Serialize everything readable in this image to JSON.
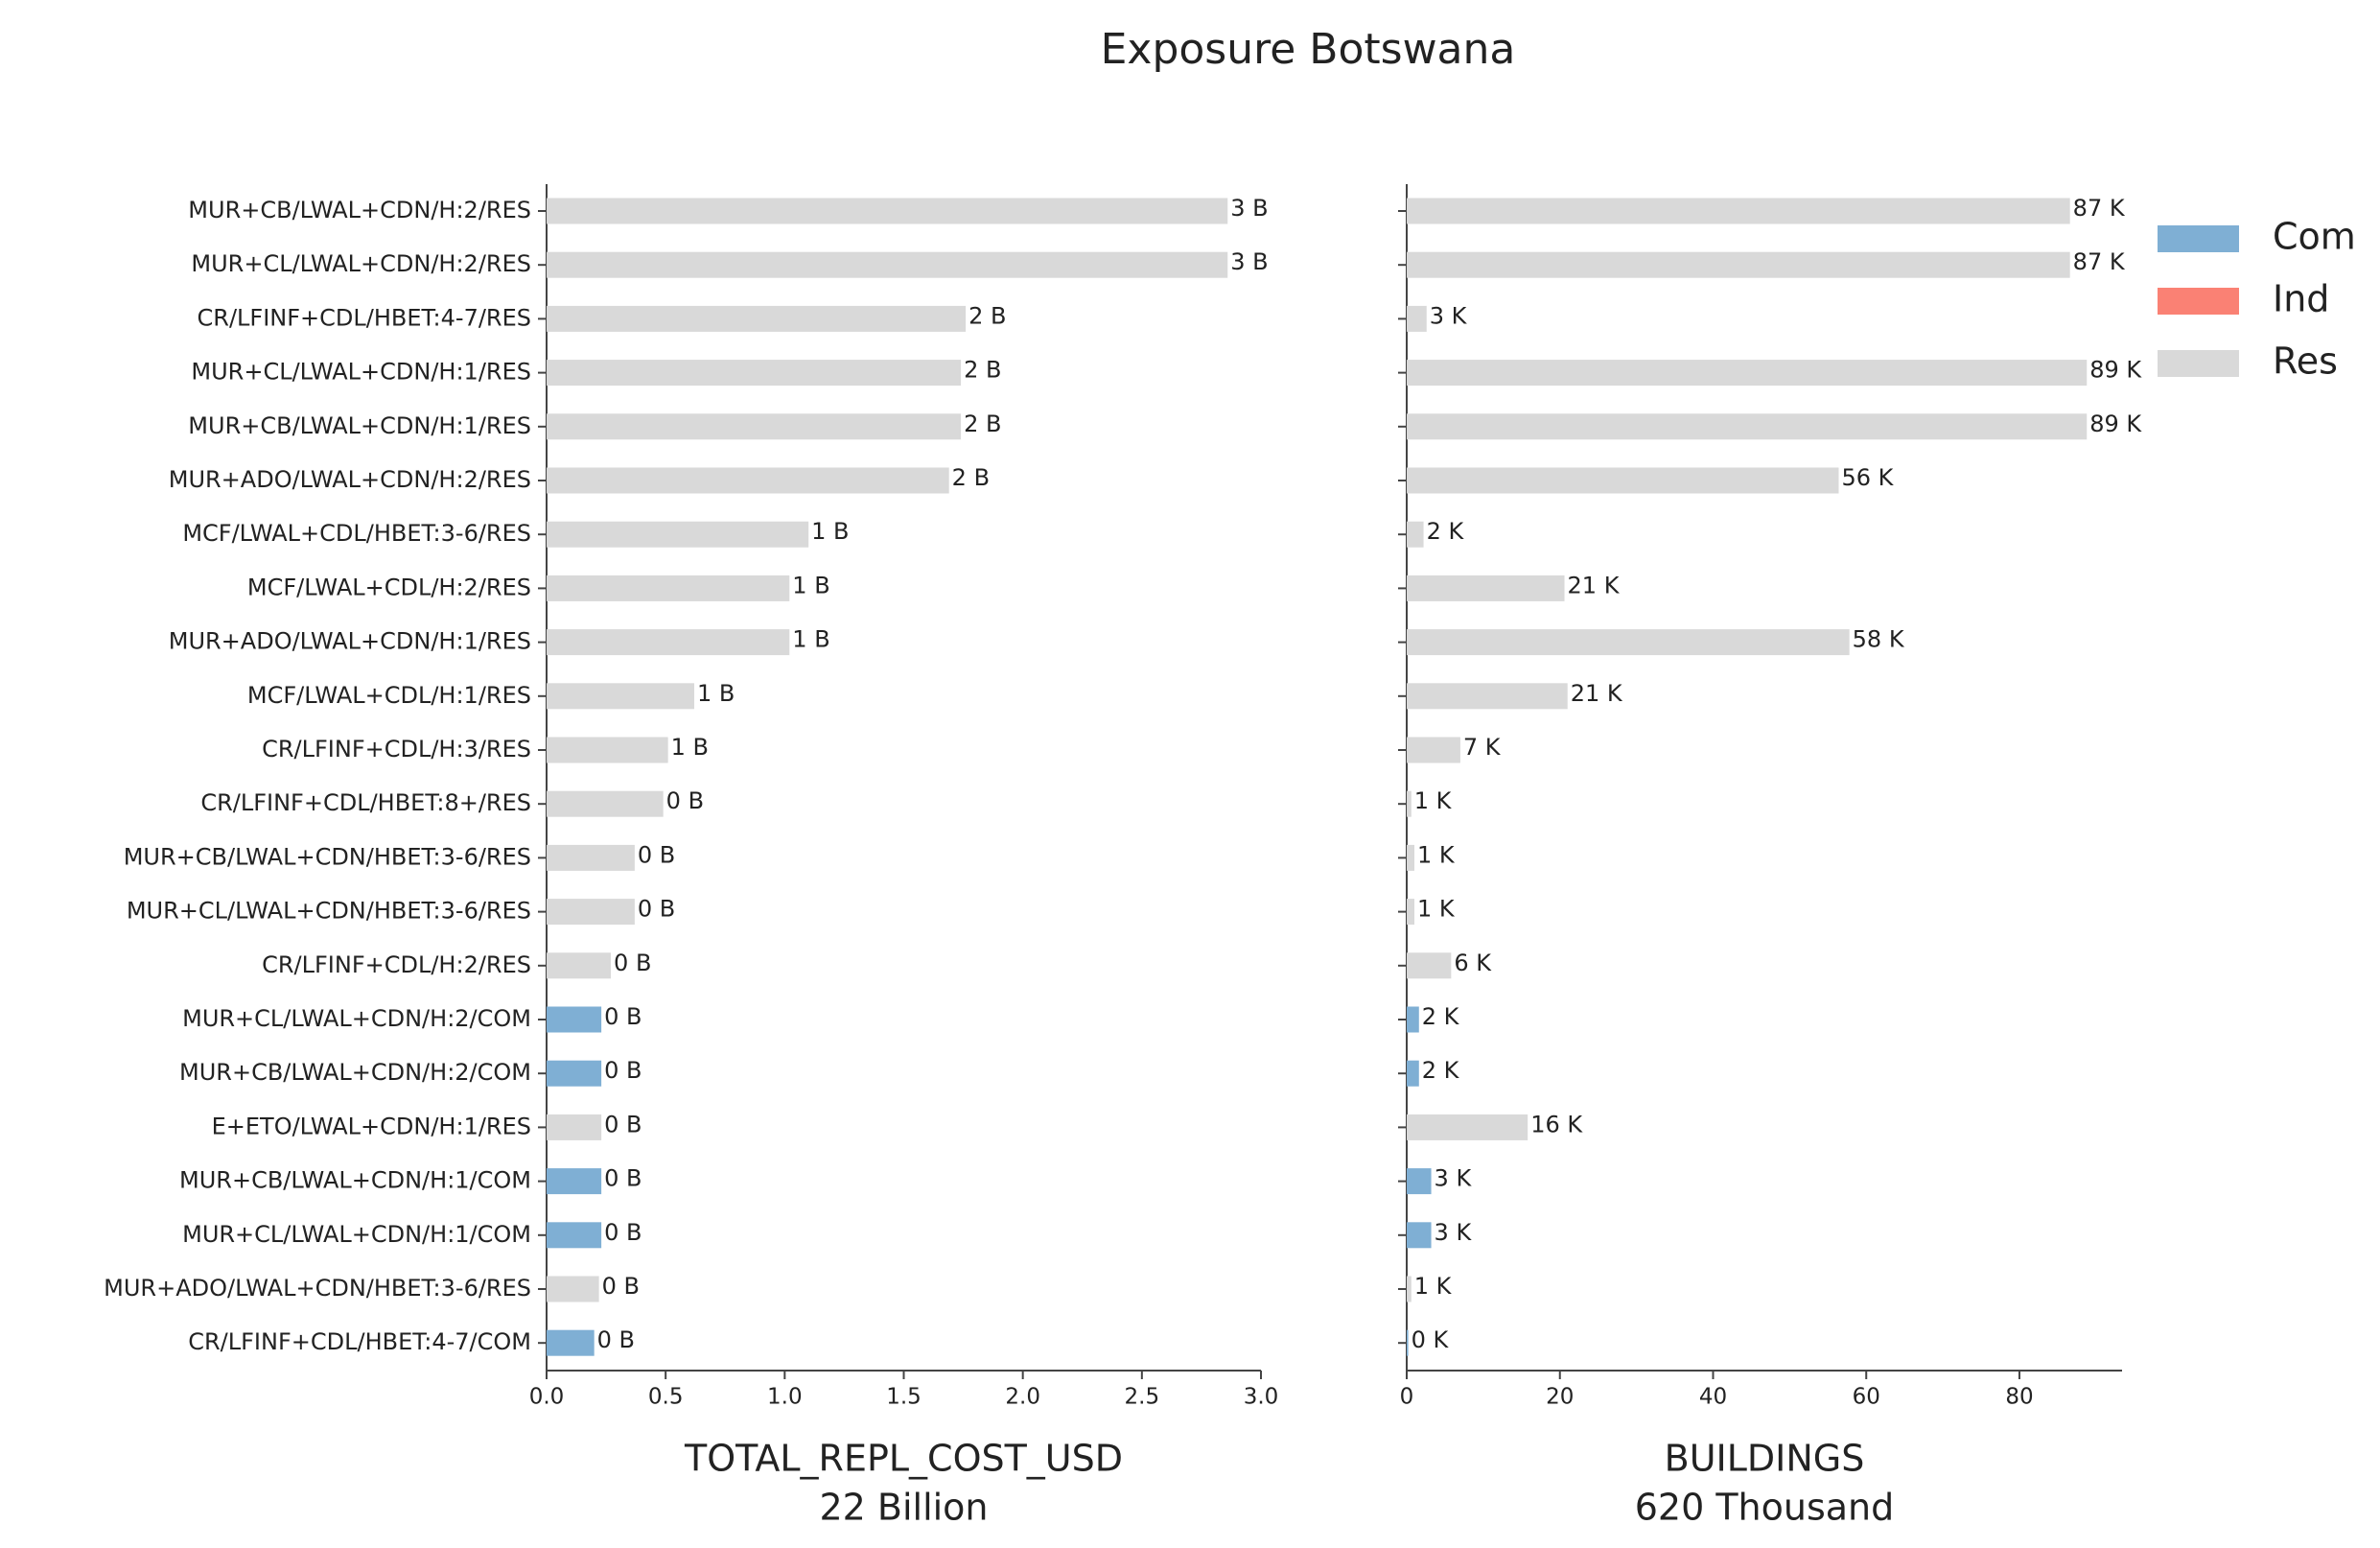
{
  "chart_data": [
    {
      "type": "bar",
      "orientation": "horizontal",
      "title": "Exposure Botswana",
      "categories": [
        "MUR+CB/LWAL+CDN/H:2/RES",
        "MUR+CL/LWAL+CDN/H:2/RES",
        "CR/LFINF+CDL/HBET:4-7/RES",
        "MUR+CL/LWAL+CDN/H:1/RES",
        "MUR+CB/LWAL+CDN/H:1/RES",
        "MUR+ADO/LWAL+CDN/H:2/RES",
        "MCF/LWAL+CDL/HBET:3-6/RES",
        "MCF/LWAL+CDL/H:2/RES",
        "MUR+ADO/LWAL+CDN/H:1/RES",
        "MCF/LWAL+CDL/H:1/RES",
        "CR/LFINF+CDL/H:3/RES",
        "CR/LFINF+CDL/HBET:8+/RES",
        "MUR+CB/LWAL+CDN/HBET:3-6/RES",
        "MUR+CL/LWAL+CDN/HBET:3-6/RES",
        "CR/LFINF+CDL/H:2/RES",
        "MUR+CL/LWAL+CDN/H:2/COM",
        "MUR+CB/LWAL+CDN/H:2/COM",
        "E+ETO/LWAL+CDN/H:1/RES",
        "MUR+CB/LWAL+CDN/H:1/COM",
        "MUR+CL/LWAL+CDN/H:1/COM",
        "MUR+ADO/LWAL+CDN/HBET:3-6/RES",
        "CR/LFINF+CDL/HBET:4-7/COM"
      ],
      "xlabel": "TOTAL_REPL_COST_USD",
      "xlabel_sub": "22 Billion",
      "xlim": [
        0,
        3.0
      ],
      "xticks": [
        {
          "value": 0,
          "label": "0.0"
        },
        0.5,
        {
          "value": 1,
          "label": "1.0"
        },
        1.5,
        {
          "value": 2,
          "label": "2.0"
        },
        2.5,
        {
          "value": 3,
          "label": "3.0"
        }
      ],
      "series": [
        {
          "color": "#7fafd4",
          "values": [
            null,
            null,
            null,
            null,
            null,
            null,
            null,
            null,
            null,
            null,
            null,
            null,
            null,
            null,
            null,
            0.23,
            0.23,
            null,
            0.23,
            0.23,
            null,
            0.2
          ],
          "value_labels": [
            null,
            null,
            null,
            null,
            null,
            null,
            null,
            null,
            null,
            null,
            null,
            null,
            null,
            null,
            null,
            "0 B",
            "0 B",
            null,
            "0 B",
            "0 B",
            null,
            "0 B"
          ]
        },
        {
          "color": "#fa8174",
          "values": [
            null,
            null,
            null,
            null,
            null,
            null,
            null,
            null,
            null,
            null,
            null,
            null,
            null,
            null,
            null,
            null,
            null,
            null,
            null,
            null,
            null,
            null
          ],
          "value_labels": [
            null,
            null,
            null,
            null,
            null,
            null,
            null,
            null,
            null,
            null,
            null,
            null,
            null,
            null,
            null,
            null,
            null,
            null,
            null,
            null,
            null,
            null
          ]
        },
        {
          "color": "#d9d9d9",
          "values": [
            2.86,
            2.86,
            1.76,
            1.74,
            1.74,
            1.69,
            1.1,
            1.02,
            1.02,
            0.62,
            0.51,
            0.49,
            0.37,
            0.37,
            0.27,
            null,
            null,
            0.23,
            null,
            null,
            0.22,
            null
          ],
          "value_labels": [
            "3 B",
            "3 B",
            "2 B",
            "2 B",
            "2 B",
            "2 B",
            "1 B",
            "1 B",
            "1 B",
            "1 B",
            "1 B",
            "0 B",
            "0 B",
            "0 B",
            "0 B",
            null,
            null,
            "0 B",
            null,
            null,
            "0 B",
            null
          ]
        }
      ]
    },
    {
      "type": "bar",
      "orientation": "horizontal",
      "xlabel": "BUILDINGS",
      "xlabel_sub": "620 Thousand",
      "xlim": [
        0,
        93.4
      ],
      "xticks": [
        0,
        20,
        40,
        60,
        80
      ],
      "legend": "upper right",
      "series": [
        {
          "name": "Com",
          "color": "#7fafd4",
          "values": [
            null,
            null,
            null,
            null,
            null,
            null,
            null,
            null,
            null,
            null,
            null,
            null,
            null,
            null,
            null,
            1.6,
            1.6,
            null,
            3.2,
            3.2,
            null,
            0.2
          ],
          "value_labels": [
            null,
            null,
            null,
            null,
            null,
            null,
            null,
            null,
            null,
            null,
            null,
            null,
            null,
            null,
            null,
            "2 K",
            "2 K",
            null,
            "3 K",
            "3 K",
            null,
            "0 K"
          ]
        },
        {
          "name": "Ind",
          "color": "#fa8174",
          "values": [
            null,
            null,
            null,
            null,
            null,
            null,
            null,
            null,
            null,
            null,
            null,
            null,
            null,
            null,
            null,
            null,
            null,
            null,
            null,
            null,
            null,
            null
          ],
          "value_labels": [
            null,
            null,
            null,
            null,
            null,
            null,
            null,
            null,
            null,
            null,
            null,
            null,
            null,
            null,
            null,
            null,
            null,
            null,
            null,
            null,
            null,
            null
          ]
        },
        {
          "name": "Res",
          "color": "#d9d9d9",
          "values": [
            86.6,
            86.6,
            2.6,
            88.8,
            88.8,
            56.4,
            2.2,
            20.6,
            57.8,
            21.0,
            7.0,
            0.6,
            1.0,
            1.0,
            5.8,
            null,
            null,
            15.8,
            null,
            null,
            0.6,
            null
          ],
          "value_labels": [
            "87 K",
            "87 K",
            "3 K",
            "89 K",
            "89 K",
            "56 K",
            "2 K",
            "21 K",
            "58 K",
            "21 K",
            "7 K",
            "1 K",
            "1 K",
            "1 K",
            "6 K",
            null,
            null,
            "16 K",
            null,
            null,
            "1 K",
            null
          ]
        }
      ]
    }
  ]
}
